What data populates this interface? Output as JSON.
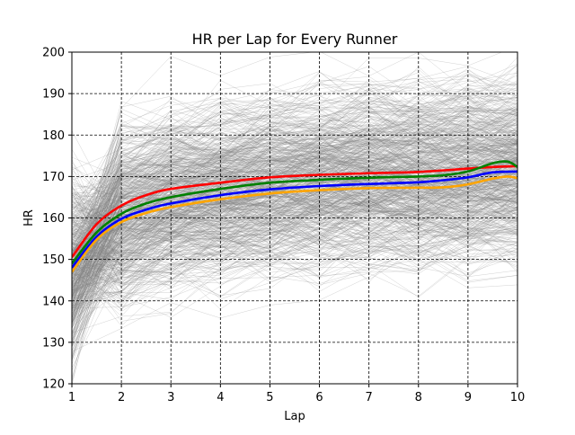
{
  "chart_data": {
    "type": "line",
    "title": "HR per Lap for Every Runner",
    "xlabel": "Lap",
    "ylabel": "HR",
    "xlim": [
      1,
      10
    ],
    "ylim": [
      120,
      200
    ],
    "x_ticks": [
      1,
      2,
      3,
      4,
      5,
      6,
      7,
      8,
      9,
      10
    ],
    "y_ticks": [
      120,
      130,
      140,
      150,
      160,
      170,
      180,
      190,
      200
    ],
    "grid": true,
    "legend": "none",
    "background_lines": {
      "color": "#808080",
      "description_count": 600,
      "x": [
        1,
        2,
        3,
        4,
        5,
        6,
        7,
        8,
        9,
        10
      ],
      "mean_profile": [
        148,
        160,
        164,
        166,
        168,
        169,
        170,
        170,
        171,
        172
      ]
    },
    "series": [
      {
        "color": "#ff0000",
        "x": [
          1,
          1.5,
          2,
          2.5,
          3,
          4,
          5,
          6,
          7,
          8,
          9,
          9.5,
          10
        ],
        "values": [
          150.5,
          158.5,
          163,
          165.5,
          167,
          168.5,
          169.8,
          170.4,
          170.8,
          171.1,
          171.9,
          172.3,
          172.5
        ]
      },
      {
        "color": "#008000",
        "x": [
          1,
          1.5,
          2,
          2.5,
          3,
          4,
          5,
          6,
          7,
          8,
          8.5,
          9,
          9.5,
          9.8,
          10
        ],
        "values": [
          149,
          156.5,
          161,
          163.5,
          165,
          167,
          168.5,
          169.2,
          169.7,
          170,
          170.3,
          171.2,
          173.2,
          173.6,
          172.3
        ]
      },
      {
        "color": "#0000ff",
        "x": [
          1,
          1.5,
          2,
          2.5,
          3,
          4,
          5,
          6,
          7,
          8,
          8.5,
          9,
          9.5,
          10
        ],
        "values": [
          148,
          155.5,
          159.8,
          162,
          163.5,
          165.5,
          166.9,
          167.7,
          168.2,
          168.6,
          169.1,
          169.8,
          171,
          171.2
        ]
      },
      {
        "color": "#ffa500",
        "x": [
          1,
          1.5,
          2,
          2.5,
          3,
          4,
          5,
          6,
          7,
          8,
          8.5,
          9,
          9.5,
          9.8,
          10
        ],
        "values": [
          147,
          154.8,
          159,
          161.2,
          162.6,
          164.5,
          165.9,
          166.7,
          167.2,
          167.3,
          167.4,
          168.1,
          169.5,
          170,
          169.6
        ]
      }
    ]
  }
}
